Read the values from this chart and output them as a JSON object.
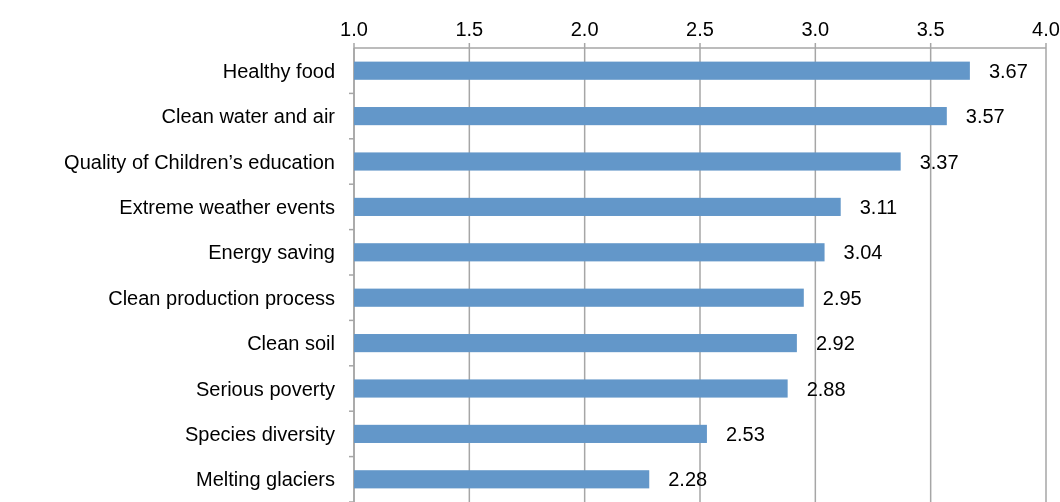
{
  "chart_data": {
    "type": "bar",
    "orientation": "horizontal",
    "categories": [
      "Healthy food",
      "Clean water and air",
      "Quality of Children’s education",
      "Extreme weather events",
      "Energy saving",
      "Clean production process",
      "Clean soil",
      "Serious poverty",
      "Species diversity",
      "Melting glaciers"
    ],
    "values": [
      3.67,
      3.57,
      3.37,
      3.11,
      3.04,
      2.95,
      2.92,
      2.88,
      2.53,
      2.28
    ],
    "color": "#6397c9",
    "xlim": [
      1,
      4
    ],
    "xticks": [
      {
        "value": 1,
        "label": "1.0"
      },
      1.5,
      {
        "value": 2,
        "label": "2.0"
      },
      2.5,
      {
        "value": 3,
        "label": "3.0"
      },
      3.5,
      {
        "value": 4,
        "label": "4.0"
      }
    ],
    "grid": "x",
    "data_labels": true
  }
}
